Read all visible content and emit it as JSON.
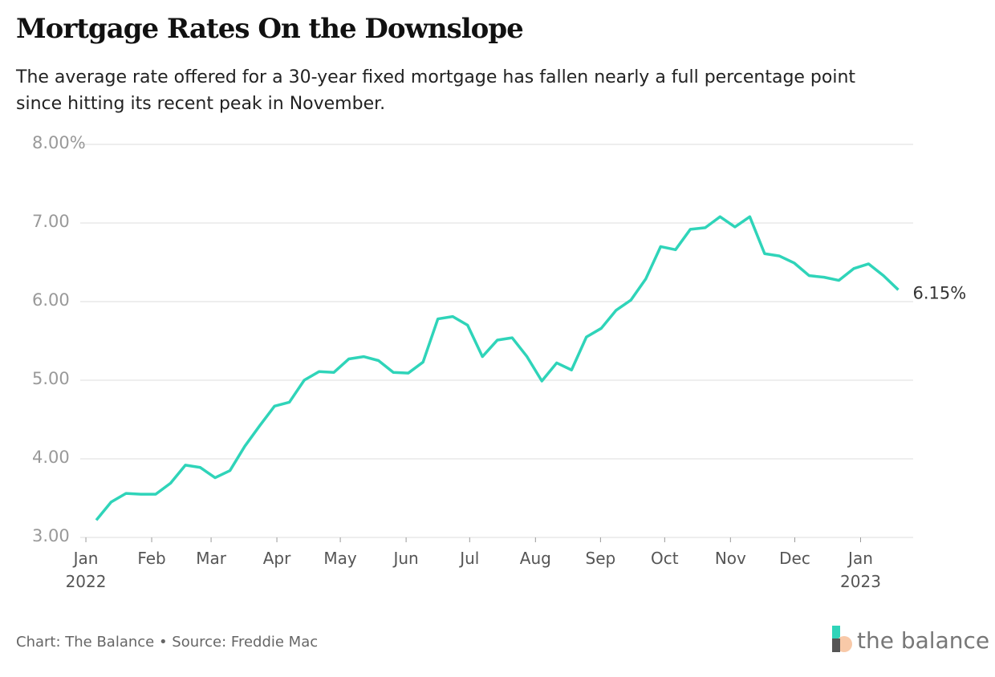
{
  "chart_data": {
    "type": "line",
    "title": "Mortgage Rates On the Downslope",
    "subtitle": [
      "The average rate offered for a 30-year fixed mortgage has fallen nearly a full percentage point",
      "since hitting its recent peak in November."
    ],
    "categories": [
      null,
      null,
      null,
      null,
      null,
      null,
      null,
      null,
      null,
      null,
      null,
      null,
      null,
      null,
      null,
      null,
      null,
      null,
      null,
      null,
      null,
      null,
      null,
      null,
      null,
      null,
      null,
      null,
      null,
      null,
      null,
      null,
      null,
      null,
      null,
      null,
      null,
      null,
      null,
      null,
      null,
      null,
      null,
      null,
      null,
      null,
      null,
      null,
      null,
      null,
      null,
      null,
      null,
      null,
      null
    ],
    "series": [
      {
        "name": null,
        "color": "#2fd4b9",
        "values": [
          3.22,
          3.45,
          3.56,
          3.55,
          3.55,
          3.69,
          3.92,
          3.89,
          3.76,
          3.85,
          4.16,
          4.42,
          4.67,
          4.72,
          5.0,
          5.11,
          5.1,
          5.27,
          5.3,
          5.25,
          5.1,
          5.09,
          5.23,
          5.78,
          5.81,
          5.7,
          5.3,
          5.51,
          5.54,
          5.3,
          4.99,
          5.22,
          5.13,
          5.55,
          5.66,
          5.89,
          6.02,
          6.29,
          6.7,
          6.66,
          6.92,
          6.94,
          7.08,
          6.95,
          7.08,
          6.61,
          6.58,
          6.49,
          6.33,
          6.31,
          6.27,
          6.42,
          6.48,
          6.33,
          6.15
        ],
        "value_labels": [
          null,
          null,
          null,
          null,
          null,
          null,
          null,
          null,
          null,
          null,
          null,
          null,
          null,
          null,
          null,
          null,
          null,
          null,
          null,
          null,
          null,
          null,
          null,
          null,
          null,
          null,
          null,
          null,
          null,
          null,
          null,
          null,
          null,
          null,
          null,
          null,
          null,
          null,
          null,
          null,
          null,
          null,
          null,
          null,
          null,
          null,
          null,
          null,
          null,
          null,
          null,
          null,
          null,
          null,
          "6.15%"
        ]
      }
    ],
    "xlim": [
      -1.08,
      55
    ],
    "xticks": [
      {
        "value": -0.7,
        "label": "Jan\n2022"
      },
      {
        "value": 3.73,
        "label": "Feb"
      },
      {
        "value": 7.73,
        "label": "Mar"
      },
      {
        "value": 12.16,
        "label": "Apr"
      },
      {
        "value": 16.43,
        "label": "May"
      },
      {
        "value": 20.86,
        "label": "Jun"
      },
      {
        "value": 25.14,
        "label": "Jul"
      },
      {
        "value": 29.57,
        "label": "Aug"
      },
      {
        "value": 33.95,
        "label": "Sep"
      },
      {
        "value": 38.27,
        "label": "Oct"
      },
      {
        "value": 42.7,
        "label": "Nov"
      },
      {
        "value": 47.03,
        "label": "Dec"
      },
      {
        "value": 51.46,
        "label": "Jan\n2023"
      }
    ],
    "ylim": [
      3,
      8
    ],
    "yticks": [
      {
        "value": 3,
        "label": "3.00"
      },
      {
        "value": 4,
        "label": "4.00"
      },
      {
        "value": 5,
        "label": "5.00"
      },
      {
        "value": 6,
        "label": "6.00"
      },
      {
        "value": 7,
        "label": "7.00"
      },
      {
        "value": 8,
        "label": "8.00%"
      }
    ],
    "grid": true,
    "source": "Chart: The Balance • Source: Freddie Mac",
    "brand": "the balance"
  }
}
